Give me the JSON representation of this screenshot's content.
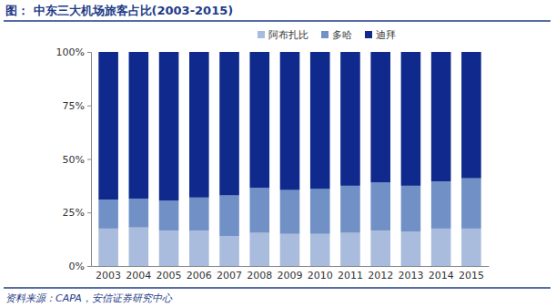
{
  "chart_data": {
    "type": "bar",
    "stacked": true,
    "title": "图：  中东三大机场旅客占比(2003-2015)",
    "source": "资料来源：CAPA，安信证券研究中心",
    "categories": [
      "2003",
      "2004",
      "2005",
      "2006",
      "2007",
      "2008",
      "2009",
      "2010",
      "2011",
      "2012",
      "2013",
      "2014",
      "2015"
    ],
    "series": [
      {
        "name": "阿布扎比",
        "color": "#a9bcdd",
        "values": [
          17.5,
          18,
          16.5,
          16.5,
          14,
          15.5,
          15,
          15,
          15.5,
          16.5,
          16,
          17.5,
          17.5
        ]
      },
      {
        "name": "多哈",
        "color": "#7191c6",
        "values": [
          13.5,
          13.5,
          14,
          15.5,
          19,
          21,
          20.5,
          21,
          22,
          22.5,
          21.5,
          22,
          23.5
        ]
      },
      {
        "name": "迪拜",
        "color": "#0f2a8c",
        "values": [
          69,
          68.5,
          69.5,
          68,
          67,
          63.5,
          64.5,
          64,
          62.5,
          61,
          62.5,
          60.5,
          59
        ]
      }
    ],
    "ylim": [
      0,
      100
    ],
    "yticks": [
      {
        "value": 0,
        "label": "0%"
      },
      {
        "value": 25,
        "label": "25%"
      },
      {
        "value": 50,
        "label": "50%"
      },
      {
        "value": 75,
        "label": "75%"
      },
      {
        "value": 100,
        "label": "100%"
      }
    ],
    "legend": "top",
    "grid": false
  }
}
